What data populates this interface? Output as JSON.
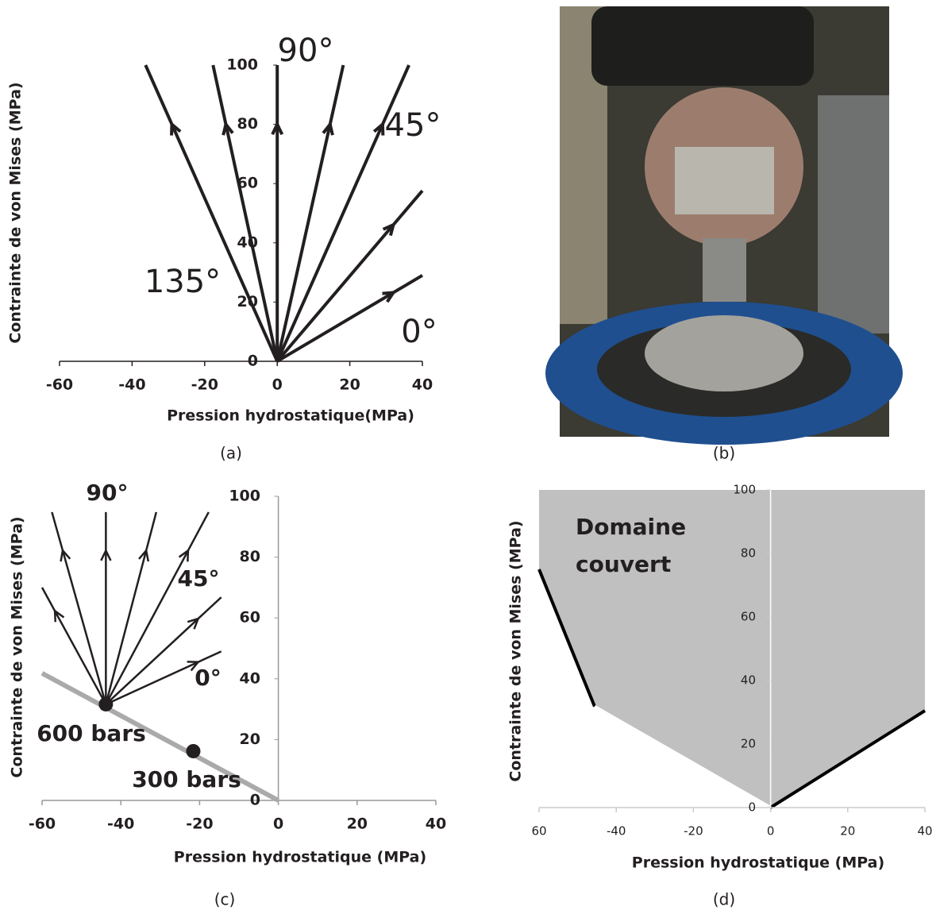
{
  "chart_data": [
    {
      "type": "line",
      "caption": "(a)",
      "color": "#231f20",
      "x_label": "Pression hydrostatique(MPa)",
      "y_label": "Contrainte de von Mises  (MPa)",
      "xlim": [
        -60,
        40
      ],
      "ylim": [
        0,
        100
      ],
      "xticks": [
        -60,
        -40,
        -20,
        0,
        20,
        40
      ],
      "yticks": [
        0,
        20,
        40,
        60,
        80,
        100
      ],
      "series": [
        {
          "x": [
            0,
            -36.3
          ],
          "values": [
            0,
            100
          ]
        },
        {
          "x": [
            0,
            -17.7
          ],
          "values": [
            0,
            100
          ]
        },
        {
          "x": [
            0,
            0
          ],
          "values": [
            0,
            100
          ]
        },
        {
          "x": [
            0,
            18.2
          ],
          "values": [
            0,
            100
          ]
        },
        {
          "x": [
            0,
            36.3
          ],
          "values": [
            0,
            100
          ]
        },
        {
          "x": [
            0,
            40
          ],
          "values": [
            0,
            57.6
          ]
        },
        {
          "x": [
            0,
            40
          ],
          "values": [
            0,
            29
          ]
        }
      ],
      "annotations": [
        "90°",
        "45°",
        "135°",
        "0°"
      ]
    },
    {
      "type": "line",
      "caption": "(c)",
      "color": "#231f20",
      "x_label": "Pression hydrostatique (MPa)",
      "y_label": "Contrainte de von Mises (MPa)",
      "xlim": [
        -60,
        40
      ],
      "ylim": [
        0,
        100
      ],
      "xticks": [
        -60,
        -40,
        -20,
        0,
        20,
        40
      ],
      "yticks": [
        0,
        20,
        40,
        60,
        80,
        100
      ],
      "guide": {
        "x": [
          -60,
          0
        ],
        "values": [
          41.8,
          0
        ],
        "color": "#aaaaaa"
      },
      "markers": [
        {
          "x": -43.8,
          "y": 31.6,
          "label": "600 bars"
        },
        {
          "x": -21.6,
          "y": 16.2,
          "label": "300 bars"
        }
      ],
      "series": [
        {
          "x": [
            -43.8,
            -60
          ],
          "values": [
            31.6,
            70
          ]
        },
        {
          "x": [
            -43.8,
            -57.5
          ],
          "values": [
            31.6,
            94.8
          ]
        },
        {
          "x": [
            -43.8,
            -43.8
          ],
          "values": [
            31.6,
            94.8
          ]
        },
        {
          "x": [
            -43.8,
            -31
          ],
          "values": [
            31.6,
            94.8
          ]
        },
        {
          "x": [
            -43.8,
            -17.7
          ],
          "values": [
            31.6,
            94.8
          ]
        },
        {
          "x": [
            -43.8,
            -14.5
          ],
          "values": [
            31.6,
            66.8
          ]
        },
        {
          "x": [
            -43.8,
            -14.5
          ],
          "values": [
            31.6,
            49
          ]
        }
      ],
      "annotations": [
        "90°",
        "45°",
        "0°"
      ]
    },
    {
      "type": "area",
      "caption": "(d)",
      "color": "#c0c0c0",
      "x_label": "Pression hydrostatique  (MPa)",
      "y_label": "Contrainte de von Mises  (MPa)",
      "xlim": [
        -60,
        40
      ],
      "ylim": [
        0,
        100
      ],
      "xticks": [
        {
          "value": -60,
          "label": "60"
        },
        -40,
        -20,
        0,
        20,
        40
      ],
      "yticks": [
        0,
        20,
        40,
        60,
        80,
        100
      ],
      "x": [
        -60,
        -45.6,
        0,
        40
      ],
      "values": [
        75,
        31.8,
        0,
        30.5
      ],
      "edge_colors": [
        "#000000",
        "#ffffff",
        "#000000"
      ],
      "annotations": [
        "Domaine",
        "couvert"
      ]
    }
  ],
  "photo": {
    "caption": "(b)"
  }
}
